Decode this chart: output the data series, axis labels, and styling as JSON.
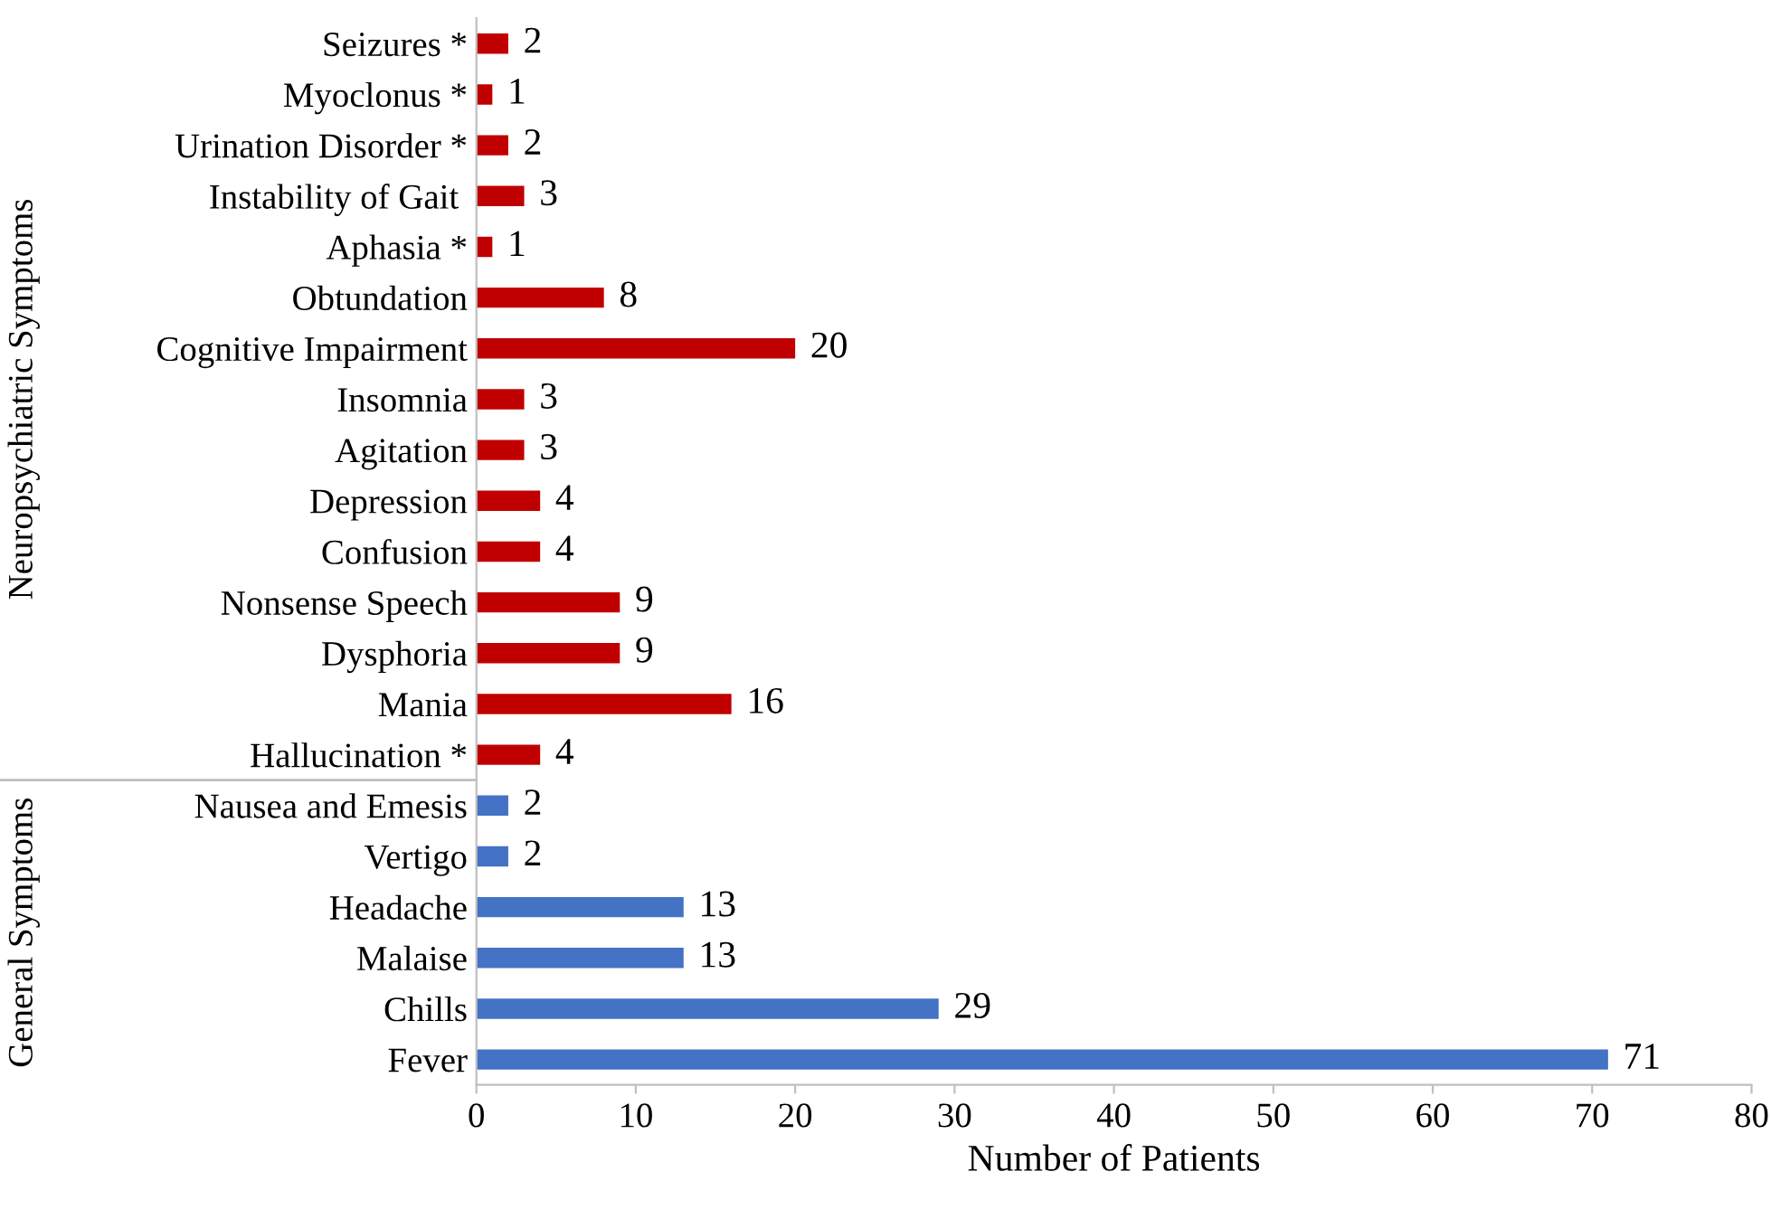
{
  "chart_data": {
    "type": "bar",
    "orientation": "horizontal",
    "xlabel": "Number of Patients",
    "categories": [
      "Seizures *",
      "Myoclonus *",
      "Urination Disorder *",
      "Instability of Gait ",
      "Aphasia *",
      "Obtundation",
      "Cognitive Impairment",
      "Insomnia",
      "Agitation",
      "Depression",
      "Confusion",
      "Nonsense Speech",
      "Dysphoria",
      "Mania",
      "Hallucination *",
      "Nausea and Emesis",
      "Vertigo",
      "Headache",
      "Malaise",
      "Chills",
      "Fever"
    ],
    "values": [
      2,
      1,
      2,
      3,
      1,
      8,
      20,
      3,
      3,
      4,
      4,
      9,
      9,
      16,
      4,
      2,
      2,
      13,
      13,
      29,
      71
    ],
    "colors": [
      "#c00000",
      "#c00000",
      "#c00000",
      "#c00000",
      "#c00000",
      "#c00000",
      "#c00000",
      "#c00000",
      "#c00000",
      "#c00000",
      "#c00000",
      "#c00000",
      "#c00000",
      "#c00000",
      "#c00000",
      "#4472c4",
      "#4472c4",
      "#4472c4",
      "#4472c4",
      "#4472c4",
      "#4472c4"
    ],
    "annotations": [
      "Neuropsychiatric Symptoms",
      "General Symptoms"
    ],
    "xlim": [
      0,
      80
    ],
    "xticks": [
      0,
      10,
      20,
      30,
      40,
      50,
      60,
      70,
      80
    ],
    "data_labels": true,
    "grid": false,
    "legend": false
  }
}
